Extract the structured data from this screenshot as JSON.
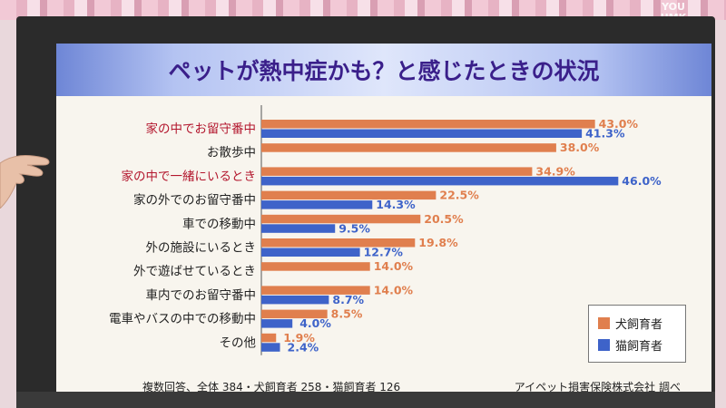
{
  "watermark": {
    "line1": "YOU",
    "line2": "UMK"
  },
  "chart_data": {
    "type": "bar",
    "title": "ペットが熱中症かも？と感じたときの状況",
    "categories": [
      "家の中でお留守番中",
      "お散歩中",
      "家の中で一緒にいるとき",
      "家の外でのお留守番中",
      "車での移動中",
      "外の施設にいるとき",
      "外で遊ばせているとき",
      "車内でのお留守番中",
      "電車やバスの中での移動中",
      "その他"
    ],
    "highlighted_categories": [
      "家の中でお留守番中",
      "家の中で一緒にいるとき"
    ],
    "series": [
      {
        "name": "犬飼育者",
        "color": "#e07f4e",
        "values": [
          43.0,
          38.0,
          34.9,
          22.5,
          20.5,
          19.8,
          14.0,
          14.0,
          8.5,
          1.9
        ]
      },
      {
        "name": "猫飼育者",
        "color": "#3e63c9",
        "values": [
          41.3,
          null,
          46.0,
          14.3,
          9.5,
          12.7,
          null,
          8.7,
          4.0,
          2.4
        ]
      }
    ],
    "value_suffix": "%",
    "orientation": "horizontal",
    "xlim": [
      0,
      50
    ],
    "grid": false,
    "legend_position": "bottom-right"
  },
  "footnote": "複数回答、全体 384・犬飼育者 258・猫飼育者 126",
  "source": "アイペット損害保険株式会社 調べ"
}
